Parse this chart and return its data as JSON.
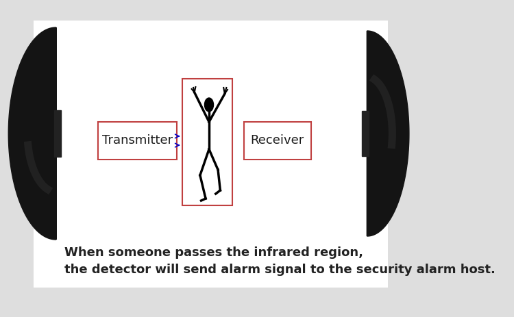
{
  "bg_color": "#dedede",
  "panel_bg": "#ffffff",
  "text_color": "#1a1a1a",
  "box_edge_color": "#c04040",
  "arrow_color": "#0000cc",
  "transmitter_label": "Transmitter",
  "receiver_label": "Receiver",
  "caption_line1": "When someone passes the infrared region,",
  "caption_line2": "the detector will send alarm signal to the security alarm host.",
  "label_fontsize": 13,
  "caption_fontsize": 13,
  "dome_color": "#141414",
  "dome_highlight": "#3a3a3a",
  "dome_rim_color": "#222222"
}
